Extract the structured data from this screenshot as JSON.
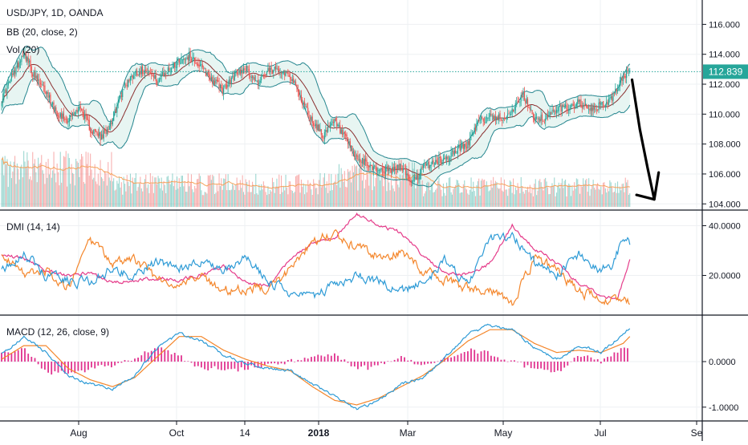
{
  "chart_data": {
    "type": "line",
    "symbol_title": "USD/JPY, 1D, OANDA",
    "indicators": {
      "bb": "BB (20, close, 2)",
      "vol": "Vol (20)",
      "dmi": "DMI (14, 14)",
      "macd": "MACD (12, 26, close, 9)"
    },
    "x_axis_labels": [
      "Aug",
      "Oct",
      "14",
      "2018",
      "Mar",
      "May",
      "Jul",
      "Se"
    ],
    "last_price": "112.839",
    "colors": {
      "up": "#26a69a",
      "down": "#ef5350",
      "bb_band": "#26868f",
      "bb_fill": "#dff1ee",
      "bb_basis": "#8b2f2f",
      "vol_ma": "#f5a25b",
      "di_plus": "#2e9bd6",
      "di_minus": "#f4862b",
      "adx": "#e53c8a",
      "macd": "#2e9bd6",
      "signal": "#f4862b",
      "hist": "#e0338f",
      "drawing": "#000000",
      "price_line": "#26a69a"
    },
    "price_pane": {
      "y_ticks": [
        "116.000",
        "114.000",
        "112.000",
        "110.000",
        "108.000",
        "106.000",
        "104.000"
      ],
      "ylim": [
        103.8,
        117.2
      ],
      "price_line_value": 112.839,
      "close_anchors": [
        [
          0,
          111.0
        ],
        [
          10,
          112.6
        ],
        [
          20,
          114.2
        ],
        [
          30,
          112.4
        ],
        [
          40,
          111.5
        ],
        [
          50,
          110.1
        ],
        [
          60,
          109.6
        ],
        [
          70,
          110.5
        ],
        [
          80,
          109.0
        ],
        [
          90,
          108.4
        ],
        [
          100,
          109.7
        ],
        [
          110,
          111.8
        ],
        [
          120,
          112.8
        ],
        [
          130,
          113.0
        ],
        [
          140,
          112.2
        ],
        [
          150,
          112.9
        ],
        [
          160,
          113.6
        ],
        [
          170,
          113.9
        ],
        [
          180,
          113.1
        ],
        [
          190,
          112.3
        ],
        [
          200,
          111.6
        ],
        [
          210,
          112.6
        ],
        [
          220,
          113.1
        ],
        [
          230,
          112.1
        ],
        [
          240,
          112.8
        ],
        [
          250,
          113.0
        ],
        [
          260,
          112.6
        ],
        [
          270,
          111.0
        ],
        [
          280,
          109.5
        ],
        [
          290,
          108.6
        ],
        [
          300,
          109.5
        ],
        [
          310,
          108.3
        ],
        [
          320,
          107.0
        ],
        [
          330,
          106.6
        ],
        [
          340,
          106.3
        ],
        [
          350,
          106.2
        ],
        [
          360,
          106.5
        ],
        [
          370,
          105.4
        ],
        [
          380,
          106.4
        ],
        [
          390,
          106.8
        ],
        [
          400,
          107.0
        ],
        [
          410,
          107.6
        ],
        [
          420,
          108.0
        ],
        [
          430,
          109.5
        ],
        [
          440,
          109.9
        ],
        [
          450,
          109.7
        ],
        [
          460,
          110.2
        ],
        [
          470,
          111.2
        ],
        [
          480,
          109.8
        ],
        [
          490,
          109.7
        ],
        [
          500,
          110.3
        ],
        [
          510,
          110.5
        ],
        [
          520,
          110.8
        ],
        [
          530,
          110.2
        ],
        [
          540,
          110.6
        ],
        [
          550,
          111.0
        ],
        [
          560,
          112.6
        ],
        [
          566,
          112.84
        ]
      ],
      "drawing_path_values": [
        [
          568,
          112.3
        ],
        [
          575,
          109.0
        ],
        [
          582,
          106.4
        ],
        [
          588,
          104.3
        ],
        [
          592,
          106.1
        ]
      ],
      "drawing_tail_values": [
        [
          572,
          104.6
        ],
        [
          588,
          104.3
        ]
      ]
    },
    "dmi_pane": {
      "y_ticks": [
        "40.0000",
        "20.0000"
      ],
      "ylim": [
        5,
        45
      ],
      "di_plus_anchors": [
        [
          0,
          22
        ],
        [
          20,
          29
        ],
        [
          40,
          20
        ],
        [
          60,
          18
        ],
        [
          80,
          17
        ],
        [
          100,
          23
        ],
        [
          120,
          19
        ],
        [
          140,
          26
        ],
        [
          160,
          22
        ],
        [
          180,
          27
        ],
        [
          200,
          21
        ],
        [
          220,
          28
        ],
        [
          240,
          17
        ],
        [
          260,
          13
        ],
        [
          280,
          10
        ],
        [
          300,
          17
        ],
        [
          320,
          20
        ],
        [
          340,
          18
        ],
        [
          360,
          13
        ],
        [
          380,
          17
        ],
        [
          400,
          26
        ],
        [
          420,
          16
        ],
        [
          440,
          35
        ],
        [
          460,
          36
        ],
        [
          480,
          25
        ],
        [
          500,
          20
        ],
        [
          520,
          28
        ],
        [
          540,
          22
        ],
        [
          550,
          25
        ],
        [
          560,
          34
        ],
        [
          566,
          33
        ]
      ],
      "di_minus_anchors": [
        [
          0,
          29
        ],
        [
          20,
          20
        ],
        [
          40,
          22
        ],
        [
          60,
          15
        ],
        [
          80,
          34
        ],
        [
          100,
          25
        ],
        [
          120,
          27
        ],
        [
          140,
          18
        ],
        [
          160,
          16
        ],
        [
          180,
          19
        ],
        [
          200,
          14
        ],
        [
          220,
          15
        ],
        [
          240,
          14
        ],
        [
          260,
          22
        ],
        [
          280,
          34
        ],
        [
          300,
          37
        ],
        [
          320,
          31
        ],
        [
          340,
          28
        ],
        [
          360,
          29
        ],
        [
          380,
          22
        ],
        [
          400,
          18
        ],
        [
          420,
          15
        ],
        [
          440,
          14
        ],
        [
          460,
          9
        ],
        [
          480,
          26
        ],
        [
          500,
          23
        ],
        [
          520,
          13
        ],
        [
          540,
          11
        ],
        [
          560,
          10
        ],
        [
          566,
          9
        ]
      ],
      "adx_anchors": [
        [
          0,
          28
        ],
        [
          20,
          27
        ],
        [
          40,
          22
        ],
        [
          60,
          20
        ],
        [
          80,
          21
        ],
        [
          100,
          17
        ],
        [
          120,
          18
        ],
        [
          140,
          19
        ],
        [
          160,
          18
        ],
        [
          180,
          20
        ],
        [
          200,
          24
        ],
        [
          220,
          17
        ],
        [
          240,
          16
        ],
        [
          260,
          26
        ],
        [
          280,
          33
        ],
        [
          300,
          35
        ],
        [
          320,
          45
        ],
        [
          340,
          40
        ],
        [
          360,
          37
        ],
        [
          380,
          28
        ],
        [
          400,
          21
        ],
        [
          420,
          20
        ],
        [
          440,
          25
        ],
        [
          460,
          40
        ],
        [
          480,
          31
        ],
        [
          500,
          25
        ],
        [
          520,
          17
        ],
        [
          540,
          12
        ],
        [
          555,
          11
        ],
        [
          566,
          27
        ]
      ]
    },
    "macd_pane": {
      "y_ticks": [
        "0.0000",
        "-1.0000"
      ],
      "ylim": [
        -1.25,
        0.95
      ],
      "macd_anchors": [
        [
          0,
          0.15
        ],
        [
          20,
          0.55
        ],
        [
          40,
          0.2
        ],
        [
          60,
          -0.3
        ],
        [
          80,
          -0.5
        ],
        [
          100,
          -0.6
        ],
        [
          120,
          -0.3
        ],
        [
          140,
          0.3
        ],
        [
          160,
          0.6
        ],
        [
          180,
          0.45
        ],
        [
          200,
          0.15
        ],
        [
          220,
          -0.05
        ],
        [
          240,
          -0.15
        ],
        [
          260,
          -0.2
        ],
        [
          280,
          -0.5
        ],
        [
          300,
          -0.75
        ],
        [
          320,
          -1.05
        ],
        [
          340,
          -0.85
        ],
        [
          360,
          -0.5
        ],
        [
          380,
          -0.35
        ],
        [
          400,
          0.1
        ],
        [
          420,
          0.6
        ],
        [
          440,
          0.8
        ],
        [
          460,
          0.7
        ],
        [
          480,
          0.3
        ],
        [
          500,
          0.05
        ],
        [
          520,
          0.35
        ],
        [
          540,
          0.2
        ],
        [
          560,
          0.6
        ],
        [
          566,
          0.75
        ]
      ],
      "signal_anchors": [
        [
          0,
          0.05
        ],
        [
          20,
          0.35
        ],
        [
          40,
          0.35
        ],
        [
          60,
          -0.15
        ],
        [
          80,
          -0.4
        ],
        [
          100,
          -0.55
        ],
        [
          120,
          -0.35
        ],
        [
          140,
          0.1
        ],
        [
          160,
          0.55
        ],
        [
          180,
          0.55
        ],
        [
          200,
          0.25
        ],
        [
          220,
          0.05
        ],
        [
          240,
          -0.1
        ],
        [
          260,
          -0.2
        ],
        [
          280,
          -0.55
        ],
        [
          300,
          -0.85
        ],
        [
          320,
          -0.95
        ],
        [
          340,
          -0.8
        ],
        [
          360,
          -0.55
        ],
        [
          380,
          -0.3
        ],
        [
          400,
          0.05
        ],
        [
          420,
          0.45
        ],
        [
          440,
          0.7
        ],
        [
          460,
          0.7
        ],
        [
          480,
          0.4
        ],
        [
          500,
          0.2
        ],
        [
          520,
          0.25
        ],
        [
          540,
          0.2
        ],
        [
          560,
          0.4
        ],
        [
          566,
          0.55
        ]
      ]
    }
  }
}
